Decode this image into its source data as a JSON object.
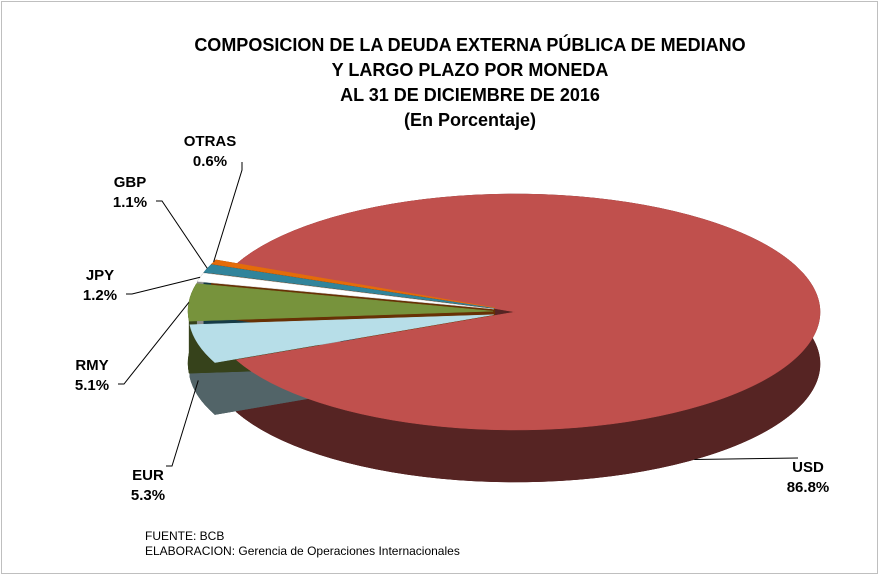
{
  "chart_data": {
    "type": "pie3d",
    "title": [
      "COMPOSICION DE LA DEUDA EXTERNA PÚBLICA DE MEDIANO",
      "Y LARGO PLAZO POR MONEDA",
      "AL 31 DE DICIEMBRE DE 2016"
    ],
    "subtitle": "(En Porcentaje)",
    "categories": [
      "USD",
      "EUR",
      "RMY",
      "JPY",
      "GBP",
      "OTRAS"
    ],
    "values": [
      86.8,
      5.3,
      5.1,
      1.2,
      1.1,
      0.6
    ],
    "value_labels": [
      "86.8%",
      "5.3%",
      "5.1%",
      "1.2%",
      "1.1%",
      "0.6%"
    ],
    "colors": [
      "#c0504d",
      "#b7dee8",
      "#77933c",
      "#ffffff",
      "#31849b",
      "#e46c0a"
    ],
    "notes": [
      "FUENTE: BCB",
      "ELABORACION: Gerencia de Operaciones Internacionales"
    ]
  }
}
